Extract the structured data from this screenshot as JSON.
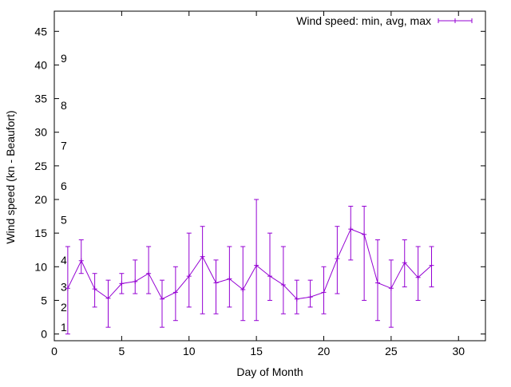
{
  "chart_data": {
    "type": "line",
    "title": "",
    "xlabel": "Day of Month",
    "ylabel": "Wind speed (kn - Beaufort)",
    "xlim": [
      0,
      32
    ],
    "ylim": [
      -1,
      48
    ],
    "x_ticks": [
      0,
      5,
      10,
      15,
      20,
      25,
      30
    ],
    "y_ticks": [
      0,
      5,
      10,
      15,
      20,
      25,
      30,
      35,
      40,
      45
    ],
    "grid": false,
    "legend_position": "top-right",
    "beaufort_labels": [
      {
        "label": "1",
        "y": 1
      },
      {
        "label": "2",
        "y": 4
      },
      {
        "label": "3",
        "y": 7
      },
      {
        "label": "4",
        "y": 11
      },
      {
        "label": "5",
        "y": 17
      },
      {
        "label": "6",
        "y": 22
      },
      {
        "label": "7",
        "y": 28
      },
      {
        "label": "8",
        "y": 34
      },
      {
        "label": "9",
        "y": 41
      }
    ],
    "series": [
      {
        "name": "Wind speed: min, avg, max",
        "color": "#9400d3",
        "x": [
          1,
          2,
          3,
          4,
          5,
          6,
          7,
          8,
          9,
          10,
          11,
          12,
          13,
          14,
          15,
          16,
          17,
          18,
          19,
          20,
          21,
          22,
          23,
          24,
          25,
          26,
          27,
          28
        ],
        "avg": [
          6.8,
          10.9,
          6.7,
          5.3,
          7.5,
          7.8,
          9.0,
          5.2,
          6.2,
          8.6,
          11.5,
          7.6,
          8.2,
          6.6,
          10.2,
          8.6,
          7.3,
          5.2,
          5.5,
          6.2,
          11.2,
          15.6,
          14.8,
          7.6,
          6.8,
          10.6,
          8.4,
          10.2
        ],
        "min": [
          0,
          9,
          4,
          1,
          6,
          6,
          6,
          1,
          2,
          4,
          3,
          3,
          4,
          2,
          2,
          5,
          3,
          3,
          4,
          3,
          6,
          11,
          5,
          2,
          1,
          7,
          5,
          7
        ],
        "max": [
          13,
          14,
          9,
          8,
          9,
          11,
          13,
          8,
          10,
          15,
          16,
          11,
          13,
          13,
          20,
          15,
          13,
          8,
          8,
          10,
          16,
          19,
          19,
          14,
          11,
          14,
          13,
          13
        ]
      }
    ]
  }
}
